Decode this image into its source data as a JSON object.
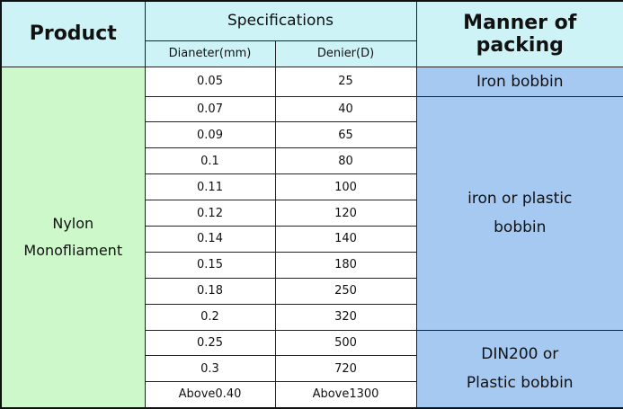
{
  "header": {
    "product": "Product",
    "specifications": "Specifications",
    "diameter": "Dianeter(mm)",
    "denier": "Denier(D)",
    "packing": "Manner of packing"
  },
  "product": "Nylon\nMonofliament",
  "rows": [
    [
      "0.05",
      "25"
    ],
    [
      "0.07",
      "40"
    ],
    [
      "0.09",
      "65"
    ],
    [
      "0.1",
      "80"
    ],
    [
      "0.11",
      "100"
    ],
    [
      "0.12",
      "120"
    ],
    [
      "0.14",
      "140"
    ],
    [
      "0.15",
      "180"
    ],
    [
      "0.18",
      "250"
    ],
    [
      "0.2",
      "320"
    ],
    [
      "0.25",
      "500"
    ],
    [
      "0.3",
      "720"
    ],
    [
      "Above0.40",
      "Above1300"
    ]
  ],
  "packing": [
    "Iron bobbin",
    "iron or plastic\nbobbin",
    "DIN200 or\nPlastic bobbin"
  ]
}
